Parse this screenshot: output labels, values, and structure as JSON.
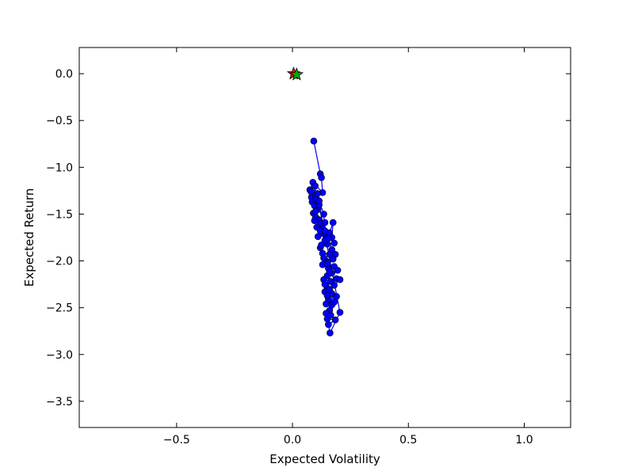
{
  "chart_data": {
    "type": "scatter",
    "title": "",
    "xlabel": "Expected Volatility",
    "ylabel": "Expected Return",
    "xlim": [
      -0.92,
      1.2
    ],
    "ylim": [
      -3.78,
      0.28
    ],
    "x_ticks": [
      -0.5,
      0.0,
      0.5,
      1.0
    ],
    "x_tick_labels": [
      "−0.5",
      "0.0",
      "0.5",
      "1.0"
    ],
    "y_ticks": [
      0.0,
      -0.5,
      -1.0,
      -1.5,
      -2.0,
      -2.5,
      -3.0,
      -3.5
    ],
    "y_tick_labels": [
      "0.0",
      "−0.5",
      "−1.0",
      "−1.5",
      "−2.0",
      "−2.5",
      "−3.0",
      "−3.5"
    ],
    "grid": false,
    "legend": "none",
    "series": [
      {
        "marker": "circle",
        "line": true,
        "color": "#0000ff",
        "points": [
          [
            0.092,
            -0.72
          ],
          [
            0.12,
            -1.07
          ],
          [
            0.125,
            -1.11
          ],
          [
            0.13,
            -1.27
          ],
          [
            0.088,
            -1.16
          ],
          [
            0.075,
            -1.24
          ],
          [
            0.08,
            -1.26
          ],
          [
            0.082,
            -1.32
          ],
          [
            0.085,
            -1.37
          ],
          [
            0.098,
            -1.2
          ],
          [
            0.1,
            -1.3
          ],
          [
            0.105,
            -1.34
          ],
          [
            0.095,
            -1.41
          ],
          [
            0.11,
            -1.45
          ],
          [
            0.09,
            -1.49
          ],
          [
            0.1,
            -1.53
          ],
          [
            0.115,
            -1.56
          ],
          [
            0.12,
            -1.6
          ],
          [
            0.105,
            -1.64
          ],
          [
            0.13,
            -1.65
          ],
          [
            0.14,
            -1.59
          ],
          [
            0.125,
            -1.7
          ],
          [
            0.11,
            -1.74
          ],
          [
            0.145,
            -1.73
          ],
          [
            0.16,
            -1.7
          ],
          [
            0.175,
            -1.59
          ],
          [
            0.17,
            -1.75
          ],
          [
            0.18,
            -1.81
          ],
          [
            0.15,
            -1.82
          ],
          [
            0.12,
            -1.86
          ],
          [
            0.13,
            -1.92
          ],
          [
            0.16,
            -1.93
          ],
          [
            0.185,
            -1.93
          ],
          [
            0.175,
            -1.98
          ],
          [
            0.145,
            -2.0
          ],
          [
            0.13,
            -2.04
          ],
          [
            0.155,
            -2.08
          ],
          [
            0.18,
            -2.06
          ],
          [
            0.195,
            -2.1
          ],
          [
            0.17,
            -2.13
          ],
          [
            0.15,
            -2.16
          ],
          [
            0.135,
            -2.2
          ],
          [
            0.165,
            -2.22
          ],
          [
            0.19,
            -2.19
          ],
          [
            0.205,
            -2.2
          ],
          [
            0.18,
            -2.26
          ],
          [
            0.15,
            -2.29
          ],
          [
            0.14,
            -2.33
          ],
          [
            0.17,
            -2.35
          ],
          [
            0.19,
            -2.38
          ],
          [
            0.155,
            -2.41
          ],
          [
            0.145,
            -2.46
          ],
          [
            0.17,
            -2.47
          ],
          [
            0.16,
            -2.53
          ],
          [
            0.145,
            -2.56
          ],
          [
            0.15,
            -2.62
          ],
          [
            0.185,
            -2.63
          ],
          [
            0.155,
            -2.68
          ],
          [
            0.162,
            -2.77
          ],
          [
            0.205,
            -2.55
          ],
          [
            0.115,
            -1.4
          ],
          [
            0.1,
            -1.47
          ],
          [
            0.095,
            -1.57
          ],
          [
            0.12,
            -1.68
          ],
          [
            0.14,
            -1.78
          ],
          [
            0.125,
            -1.83
          ],
          [
            0.135,
            -1.97
          ],
          [
            0.15,
            -2.03
          ],
          [
            0.16,
            -2.12
          ],
          [
            0.14,
            -2.25
          ],
          [
            0.16,
            -2.31
          ],
          [
            0.18,
            -2.44
          ],
          [
            0.165,
            -2.58
          ],
          [
            0.15,
            -2.37
          ],
          [
            0.17,
            -1.88
          ],
          [
            0.155,
            -1.76
          ],
          [
            0.14,
            -1.68
          ],
          [
            0.135,
            -1.5
          ],
          [
            0.115,
            -1.36
          ],
          [
            0.108,
            -1.28
          ]
        ]
      },
      {
        "marker": "star",
        "line": false,
        "color": "#ff0000",
        "points": [
          [
            0.005,
            0.0
          ]
        ]
      },
      {
        "marker": "star",
        "line": false,
        "color": "#00aa00",
        "points": [
          [
            0.018,
            -0.01
          ]
        ]
      }
    ]
  }
}
